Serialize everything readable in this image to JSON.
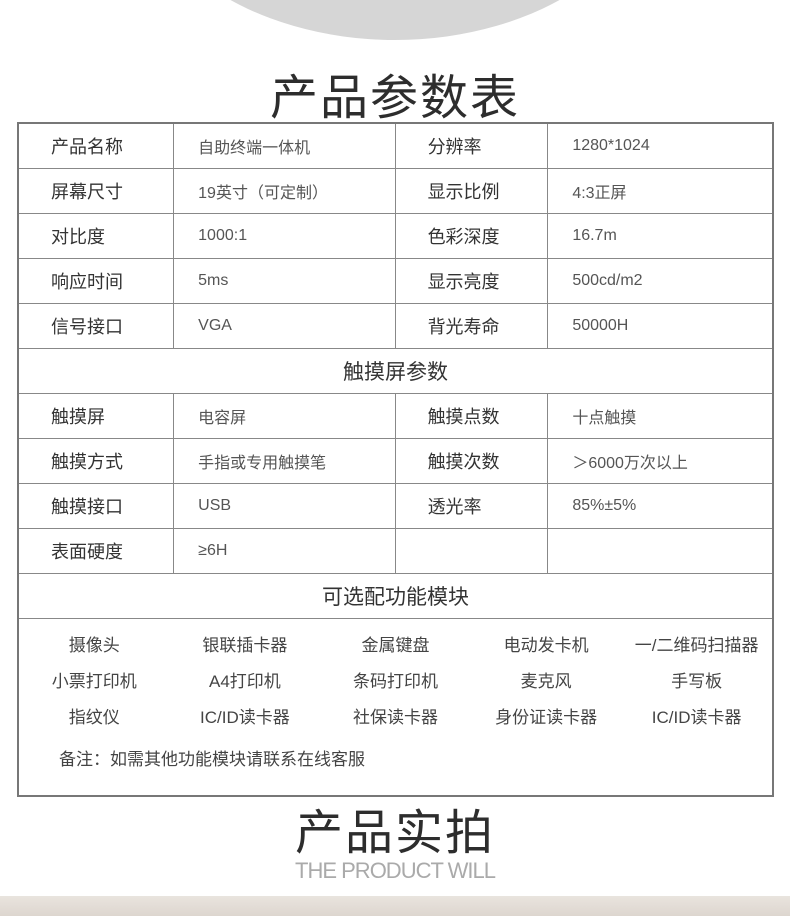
{
  "title": "产品参数表",
  "specs": [
    [
      "产品名称",
      "自助终端一体机",
      "分辨率",
      "1280*1024"
    ],
    [
      "屏幕尺寸",
      "19英寸（可定制）",
      "显示比例",
      "4:3正屏"
    ],
    [
      "对比度",
      "1000:1",
      "色彩深度",
      "16.7m"
    ],
    [
      "响应时间",
      "5ms",
      "显示亮度",
      "500cd/m2"
    ],
    [
      "信号接口",
      "VGA",
      "背光寿命",
      "50000H"
    ]
  ],
  "touch_header": "触摸屏参数",
  "touch": [
    [
      "触摸屏",
      "电容屏",
      "触摸点数",
      "十点触摸"
    ],
    [
      "触摸方式",
      "手指或专用触摸笔",
      "触摸次数",
      "＞6000万次以上"
    ],
    [
      "触摸接口",
      "USB",
      "透光率",
      "85%±5%"
    ],
    [
      "表面硬度",
      "≥6H",
      "",
      ""
    ]
  ],
  "modules_header": "可选配功能模块",
  "modules": [
    [
      "摄像头",
      "银联插卡器",
      "金属键盘",
      "电动发卡机",
      "一/二维码扫描器"
    ],
    [
      "小票打印机",
      "A4打印机",
      "条码打印机",
      "麦克风",
      "手写板"
    ],
    [
      "指纹仪",
      "IC/ID读卡器",
      "社保读卡器",
      "身份证读卡器",
      "IC/ID读卡器"
    ]
  ],
  "note": "备注：如需其他功能模块请联系在线客服",
  "section2_title": "产品实拍",
  "section2_subtitle": "THE PRODUCT WILL"
}
